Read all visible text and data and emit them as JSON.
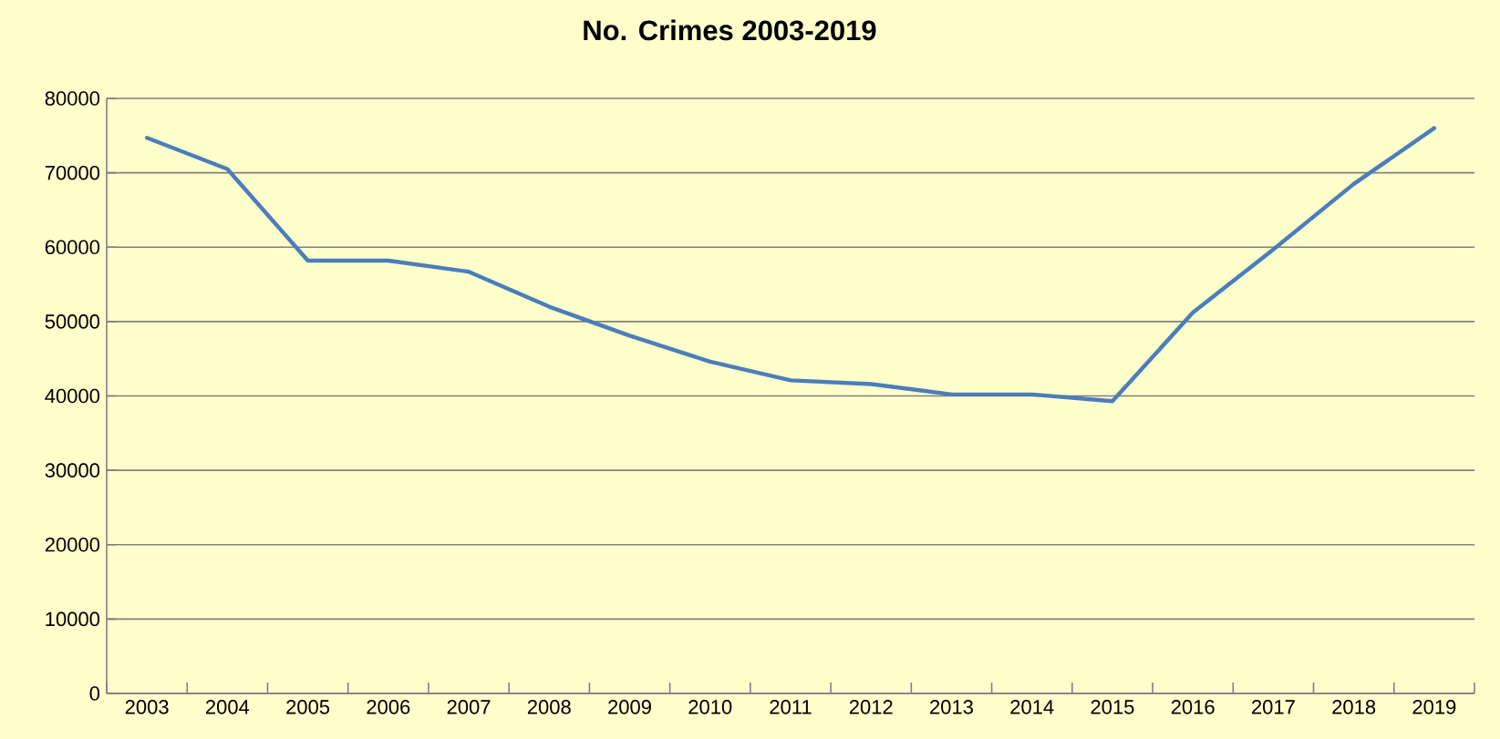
{
  "chart_data": {
    "type": "line",
    "title": "No. Crimes 2003-2019",
    "categories": [
      "2003",
      "2004",
      "2005",
      "2006",
      "2007",
      "2008",
      "2009",
      "2010",
      "2011",
      "2012",
      "2013",
      "2014",
      "2015",
      "2016",
      "2017",
      "2018",
      "2019"
    ],
    "series": [
      {
        "color": "#4a7ebb",
        "values": [
          74700,
          70500,
          58200,
          58200,
          56700,
          52000,
          48100,
          44600,
          42100,
          41600,
          40200,
          40200,
          39300,
          51200,
          59700,
          68500,
          76000
        ]
      }
    ],
    "ylim": [
      0,
      80000
    ],
    "yticks": [
      0,
      10000,
      20000,
      30000,
      40000,
      50000,
      60000,
      70000,
      80000
    ],
    "grid": "y",
    "marker": "none",
    "line_style": "solid"
  }
}
